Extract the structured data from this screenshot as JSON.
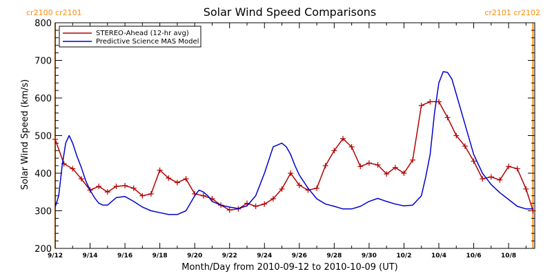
{
  "chart_data": {
    "type": "line",
    "title": "Solar Wind Speed Comparisons",
    "xlabel": "Month/Day from 2010-09-12 to 2010-10-09 (UT)",
    "ylabel": "Solar Wind Speed (km/s)",
    "ylim": [
      200,
      800
    ],
    "xlim_days": [
      0,
      27.5
    ],
    "x_tick_labels": [
      "9/12",
      "9/14",
      "9/16",
      "9/18",
      "9/20",
      "9/22",
      "9/24",
      "9/26",
      "9/28",
      "9/30",
      "10/2",
      "10/4",
      "10/6",
      "10/8"
    ],
    "y_tick_labels": [
      "200",
      "300",
      "400",
      "500",
      "600",
      "700",
      "800"
    ],
    "grid": false,
    "legend_position": "top-left",
    "carrington_markers": [
      {
        "x": 0,
        "label": "cr2100 cr2101",
        "color": "#FF8C00"
      },
      {
        "x": 27.4,
        "label": "cr2101 cr2102",
        "color": "#FF8C00"
      }
    ],
    "series": [
      {
        "name": "STEREO-Ahead (12-hr avg)",
        "color": "#B00000",
        "marker": "+",
        "x": [
          0,
          0.5,
          1,
          1.5,
          2,
          2.5,
          3,
          3.5,
          4,
          4.5,
          5,
          5.5,
          6,
          6.5,
          7,
          7.5,
          8,
          8.5,
          9,
          9.5,
          10,
          10.5,
          11,
          11.5,
          12,
          12.5,
          13,
          13.5,
          14,
          14.5,
          15,
          15.5,
          16,
          16.5,
          17,
          17.5,
          18,
          18.5,
          19,
          19.5,
          20,
          20.5,
          21,
          21.5,
          22,
          22.5,
          23,
          23.5,
          24,
          24.5,
          25,
          25.5,
          26,
          26.5,
          27,
          27.4
        ],
        "values": [
          490,
          425,
          412,
          385,
          355,
          365,
          350,
          365,
          367,
          360,
          340,
          345,
          408,
          387,
          375,
          385,
          345,
          340,
          332,
          315,
          302,
          305,
          320,
          312,
          318,
          332,
          358,
          400,
          368,
          355,
          360,
          420,
          460,
          492,
          470,
          418,
          427,
          422,
          398,
          415,
          400,
          435,
          580,
          590,
          590,
          548,
          500,
          472,
          432,
          385,
          390,
          382,
          418,
          412,
          358,
          300
        ]
      },
      {
        "name": "Predictive Science MAS Model",
        "color": "#0000CC",
        "marker": "",
        "x": [
          0,
          0.2,
          0.4,
          0.6,
          0.8,
          1,
          1.25,
          1.5,
          1.75,
          2,
          2.25,
          2.5,
          2.75,
          3,
          3.5,
          4,
          4.5,
          5,
          5.5,
          6,
          6.5,
          7,
          7.5,
          8,
          8.25,
          8.5,
          8.75,
          9,
          9.5,
          10,
          10.5,
          11,
          11.5,
          12,
          12.5,
          13,
          13.25,
          13.5,
          13.75,
          14,
          14.5,
          15,
          15.5,
          16,
          16.5,
          17,
          17.5,
          18,
          18.5,
          19,
          19.5,
          20,
          20.5,
          21,
          21.25,
          21.5,
          21.75,
          22,
          22.25,
          22.5,
          22.75,
          23,
          23.25,
          23.5,
          23.75,
          24,
          24.5,
          25,
          25.5,
          26,
          26.5,
          27,
          27.4
        ],
        "values": [
          310,
          340,
          420,
          480,
          500,
          480,
          445,
          415,
          380,
          355,
          335,
          320,
          315,
          315,
          335,
          338,
          325,
          310,
          300,
          295,
          290,
          290,
          300,
          340,
          355,
          350,
          340,
          325,
          315,
          310,
          306,
          313,
          340,
          400,
          470,
          480,
          470,
          450,
          420,
          395,
          360,
          332,
          318,
          312,
          305,
          305,
          312,
          325,
          333,
          325,
          318,
          313,
          315,
          340,
          390,
          450,
          560,
          640,
          670,
          668,
          650,
          610,
          570,
          530,
          490,
          450,
          400,
          370,
          348,
          330,
          312,
          305,
          305
        ]
      }
    ]
  }
}
